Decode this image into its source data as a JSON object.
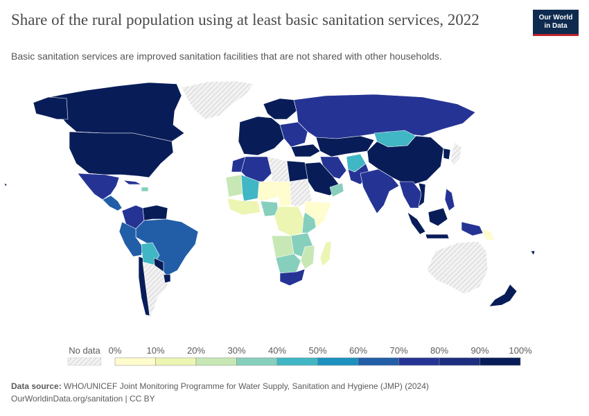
{
  "header": {
    "title": "Share of the rural population using at least basic sanitation services, 2022",
    "subtitle": "Basic sanitation services are improved sanitation facilities that are not shared with other households.",
    "logo_line1": "Our World",
    "logo_line2": "in Data"
  },
  "legend": {
    "no_data_label": "No data",
    "ticks": [
      "0%",
      "10%",
      "20%",
      "30%",
      "40%",
      "50%",
      "60%",
      "70%",
      "80%",
      "90%",
      "100%"
    ],
    "bins": [
      "#fffccd",
      "#ecf5b2",
      "#c7e8b5",
      "#86cfbc",
      "#41b6c4",
      "#1d91c0",
      "#225ea8",
      "#253494",
      "#1b2e7f",
      "#081d58"
    ]
  },
  "footer": {
    "source_label": "Data source:",
    "source_text": "WHO/UNICEF Joint Monitoring Programme for Water Supply, Sanitation and Hygiene (JMP) (2024)",
    "url_license": "OurWorldinData.org/sanitation | CC BY"
  },
  "colors": {
    "no_data_fill": "#efefef",
    "no_data_hatch": "#c8c8c8",
    "border": "#ffffff"
  }
}
